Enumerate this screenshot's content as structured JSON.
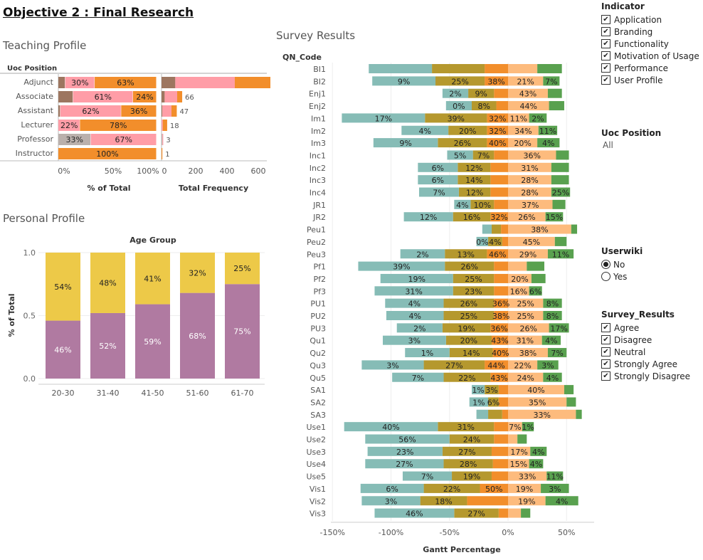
{
  "title": "Objective 2 : Final Research",
  "colors": {
    "agree": "#FDBB7D",
    "disagree": "#B5982E",
    "neutral": "#F28E2B",
    "strongly_agree": "#59A14F",
    "strongly_disagree": "#86BCB6",
    "pink": "#FF9DA7",
    "brown": "#9D7660",
    "grey": "#BAB0AC",
    "age_young": "#EDC948",
    "age_old": "#B07AA1"
  },
  "teaching": {
    "section_title": "Teaching Profile",
    "row_header": "Uoc Position",
    "pct_axis_title": "% of Total",
    "freq_axis_title": "Total Frequency",
    "pct_ticks": [
      "0%",
      "50%",
      "100%"
    ],
    "freq_ticks": [
      "0",
      "200",
      "400",
      "600"
    ]
  },
  "personal": {
    "section_title": "Personal Profile",
    "header": "Age Group",
    "ylabel": "% of Total",
    "yticks": [
      "0.0",
      "0.5",
      "1.0"
    ]
  },
  "survey": {
    "section_title": "Survey Results",
    "row_header": "QN_Code",
    "xlabel": "Gantt Percentage",
    "xticks": [
      "-150%",
      "-100%",
      "-50%",
      "0%",
      "50%"
    ]
  },
  "filters": {
    "indicator": {
      "title": "Indicator",
      "items": [
        "Application",
        "Branding",
        "Functionality",
        "Motivation of Usage",
        "Performance",
        "User Profile"
      ]
    },
    "uoc_position": {
      "title": "Uoc Position",
      "value": "All"
    },
    "userwiki": {
      "title": "Userwiki",
      "options": [
        "No",
        "Yes"
      ],
      "selected": "No"
    },
    "survey_results": {
      "title": "Survey_Results",
      "items": [
        "Agree",
        "Disagree",
        "Neutral",
        "Strongly Agree",
        "Strongly Disagree"
      ]
    }
  },
  "chart_data": [
    {
      "type": "bar",
      "title": "Teaching Profile",
      "row_header": "Uoc Position",
      "xlabel": "% of Total",
      "categories": [
        "Adjunct",
        "Associate",
        "Assistant",
        "Lecturer",
        "Professor",
        "Instructor"
      ],
      "stacked_percent": [
        [
          {
            "v": 7,
            "c": "brown"
          },
          {
            "v": 30,
            "c": "pink",
            "label": "30%"
          },
          {
            "v": 63,
            "c": "neutral",
            "label": "63%"
          }
        ],
        [
          {
            "v": 15,
            "c": "brown"
          },
          {
            "v": 61,
            "c": "pink",
            "label": "61%"
          },
          {
            "v": 24,
            "c": "neutral",
            "label": "24%"
          }
        ],
        [
          {
            "v": 2,
            "c": "brown"
          },
          {
            "v": 62,
            "c": "pink",
            "label": "62%"
          },
          {
            "v": 36,
            "c": "neutral",
            "label": "36%"
          }
        ],
        [
          {
            "v": 22,
            "c": "pink",
            "label": "22%"
          },
          {
            "v": 78,
            "c": "neutral",
            "label": "78%"
          }
        ],
        [
          {
            "v": 33,
            "c": "grey",
            "label": "33%"
          },
          {
            "v": 67,
            "c": "pink",
            "label": "67%"
          }
        ],
        [
          {
            "v": 100,
            "c": "neutral",
            "label": "100%"
          }
        ]
      ],
      "xlim": [
        0,
        100
      ]
    },
    {
      "type": "bar",
      "xlabel": "Total Frequency",
      "categories": [
        "Adjunct",
        "Associate",
        "Assistant",
        "Lecturer",
        "Professor",
        "Instructor"
      ],
      "stacked_values": [
        [
          {
            "v": 44,
            "c": "brown"
          },
          {
            "v": 190,
            "c": "pink"
          },
          {
            "v": 401,
            "c": "neutral"
          }
        ],
        [
          {
            "v": 10,
            "c": "brown"
          },
          {
            "v": 40,
            "c": "pink"
          },
          {
            "v": 16,
            "c": "neutral"
          }
        ],
        [
          {
            "v": 1,
            "c": "brown"
          },
          {
            "v": 29,
            "c": "pink"
          },
          {
            "v": 17,
            "c": "neutral"
          }
        ],
        [
          {
            "v": 4,
            "c": "pink"
          },
          {
            "v": 14,
            "c": "neutral"
          }
        ],
        [
          {
            "v": 1,
            "c": "grey"
          },
          {
            "v": 2,
            "c": "pink"
          }
        ],
        [
          {
            "v": 1,
            "c": "neutral"
          }
        ]
      ],
      "totals": [
        "635",
        "66",
        "47",
        "18",
        "3",
        "1"
      ],
      "xlim": [
        0,
        650
      ]
    },
    {
      "type": "bar",
      "title": "Personal Profile",
      "header": "Age Group",
      "ylabel": "% of Total",
      "categories": [
        "20-30",
        "31-40",
        "41-50",
        "51-60",
        "61-70"
      ],
      "series": [
        {
          "color": "age_old",
          "values": [
            0.46,
            0.52,
            0.59,
            0.68,
            0.75
          ],
          "labels": [
            "46%",
            "52%",
            "59%",
            "68%",
            "75%"
          ]
        },
        {
          "color": "age_young",
          "values": [
            0.54,
            0.48,
            0.41,
            0.32,
            0.25
          ],
          "labels": [
            "54%",
            "48%",
            "41%",
            "32%",
            "25%"
          ]
        }
      ],
      "ylim": [
        0,
        1
      ]
    },
    {
      "type": "bar",
      "title": "Survey Results",
      "row_header": "QN_Code",
      "xlabel": "Gantt Percentage",
      "xlim": [
        -150,
        75
      ],
      "segment_order": [
        "strongly_disagree",
        "disagree",
        "neutral",
        "agree",
        "strongly_agree"
      ],
      "rows": [
        {
          "code": "BI1",
          "sd": 54,
          "d": 45,
          "n": 20,
          "a": 25,
          "sa": 21,
          "labels": {}
        },
        {
          "code": "BI2",
          "sd": 54,
          "d": 42,
          "n": 20,
          "a": 30,
          "sa": 14,
          "labels": {
            "sd": "9%",
            "d": "25%",
            "n": "38%",
            "a": "21%",
            "sa": "7%"
          }
        },
        {
          "code": "Enj1",
          "sd": 22,
          "d": 22,
          "n": 12,
          "a": 34,
          "sa": 12,
          "labels": {
            "sd": "2%",
            "d": "9%",
            "a": "43%"
          }
        },
        {
          "code": "Enj2",
          "sd": 22,
          "d": 21,
          "n": 10,
          "a": 35,
          "sa": 13,
          "labels": {
            "sd": "0%",
            "d": "8%",
            "a": "44%"
          }
        },
        {
          "code": "Im1",
          "sd": 71,
          "d": 53,
          "n": 18,
          "a": 18,
          "sa": 15,
          "labels": {
            "sd": "17%",
            "d": "39%",
            "n": "32%",
            "a": "11%",
            "sa": "2%"
          }
        },
        {
          "code": "Im2",
          "sd": 40,
          "d": 33,
          "n": 18,
          "a": 26,
          "sa": 16,
          "labels": {
            "sd": "4%",
            "d": "20%",
            "n": "32%",
            "a": "34%",
            "sa": "11%"
          }
        },
        {
          "code": "Im3",
          "sd": 55,
          "d": 42,
          "n": 18,
          "a": 25,
          "sa": 19,
          "labels": {
            "sd": "9%",
            "d": "26%",
            "n": "40%",
            "a": "20%",
            "sa": "4%"
          }
        },
        {
          "code": "Inc1",
          "sd": 22,
          "d": 18,
          "n": 12,
          "a": 41,
          "sa": 11,
          "labels": {
            "sd": "5%",
            "d": "7%",
            "a": "36%"
          }
        },
        {
          "code": "Inc2",
          "sd": 34,
          "d": 28,
          "n": 15,
          "a": 37,
          "sa": 15,
          "labels": {
            "sd": "6%",
            "d": "12%",
            "a": "31%"
          }
        },
        {
          "code": "Inc3",
          "sd": 34,
          "d": 28,
          "n": 15,
          "a": 37,
          "sa": 15,
          "labels": {
            "sd": "6%",
            "d": "14%",
            "a": "28%"
          }
        },
        {
          "code": "Inc4",
          "sd": 34,
          "d": 27,
          "n": 15,
          "a": 37,
          "sa": 16,
          "labels": {
            "sd": "7%",
            "d": "12%",
            "a": "28%",
            "sa": "25%"
          }
        },
        {
          "code": "JR1",
          "sd": 14,
          "d": 20,
          "n": 12,
          "a": 38,
          "sa": 11,
          "labels": {
            "sd": "4%",
            "d": "10%",
            "a": "37%"
          }
        },
        {
          "code": "JR2",
          "sd": 42,
          "d": 32,
          "n": 15,
          "a": 32,
          "sa": 15,
          "labels": {
            "sd": "12%",
            "d": "16%",
            "n": "32%",
            "a": "26%",
            "sa": "15%"
          }
        },
        {
          "code": "Peu1",
          "sd": 8,
          "d": 8,
          "n": 6,
          "a": 54,
          "sa": 5,
          "labels": {
            "a": "38%"
          }
        },
        {
          "code": "Peu2",
          "sd": 10,
          "d": 12,
          "n": 5,
          "a": 40,
          "sa": 10,
          "labels": {
            "sd": "0%",
            "d": "4%",
            "a": "45%"
          }
        },
        {
          "code": "Peu3",
          "sd": 38,
          "d": 36,
          "n": 18,
          "a": 34,
          "sa": 22,
          "labels": {
            "sd": "2%",
            "d": "13%",
            "n": "46%",
            "a": "29%",
            "sa": "11%"
          }
        },
        {
          "code": "Pf1",
          "sd": 74,
          "d": 42,
          "n": 12,
          "a": 16,
          "sa": 15,
          "labels": {
            "sd": "39%",
            "d": "26%"
          }
        },
        {
          "code": "Pf2",
          "sd": 62,
          "d": 35,
          "n": 12,
          "a": 20,
          "sa": 12,
          "labels": {
            "sd": "19%",
            "d": "25%",
            "a": "20%"
          }
        },
        {
          "code": "Pf3",
          "sd": 67,
          "d": 35,
          "n": 12,
          "a": 18,
          "sa": 11,
          "labels": {
            "sd": "31%",
            "d": "23%",
            "a": "16%",
            "sa": "6%"
          }
        },
        {
          "code": "PU1",
          "sd": 50,
          "d": 43,
          "n": 12,
          "a": 30,
          "sa": 16,
          "labels": {
            "sd": "4%",
            "d": "26%",
            "n": "36%",
            "a": "25%",
            "sa": "8%"
          }
        },
        {
          "code": "PU2",
          "sd": 49,
          "d": 43,
          "n": 12,
          "a": 30,
          "sa": 16,
          "labels": {
            "sd": "4%",
            "d": "25%",
            "n": "38%",
            "a": "25%",
            "sa": "8%"
          }
        },
        {
          "code": "PU3",
          "sd": 39,
          "d": 41,
          "n": 15,
          "a": 35,
          "sa": 17,
          "labels": {
            "sd": "2%",
            "d": "19%",
            "n": "36%",
            "a": "26%",
            "sa": "17%"
          }
        },
        {
          "code": "Qu1",
          "sd": 54,
          "d": 39,
          "n": 14,
          "a": 29,
          "sa": 16,
          "labels": {
            "sd": "3%",
            "d": "20%",
            "n": "43%",
            "a": "31%",
            "sa": "4%"
          }
        },
        {
          "code": "Qu2",
          "sd": 38,
          "d": 37,
          "n": 13,
          "a": 34,
          "sa": 16,
          "labels": {
            "sd": "1%",
            "d": "14%",
            "n": "40%",
            "a": "38%",
            "sa": "7%"
          }
        },
        {
          "code": "Qu3",
          "sd": 53,
          "d": 52,
          "n": 20,
          "a": 25,
          "sa": 18,
          "labels": {
            "sd": "3%",
            "d": "27%",
            "n": "44%",
            "a": "22%",
            "sa": "3%"
          }
        },
        {
          "code": "Qu5",
          "sd": 44,
          "d": 40,
          "n": 15,
          "a": 30,
          "sa": 16,
          "labels": {
            "sd": "7%",
            "d": "22%",
            "n": "43%",
            "a": "24%",
            "sa": "4%"
          }
        },
        {
          "code": "SA1",
          "sd": 11,
          "d": 12,
          "n": 8,
          "a": 48,
          "sa": 8,
          "labels": {
            "sd": "1%",
            "d": "3%",
            "a": "40%"
          }
        },
        {
          "code": "SA2",
          "sd": 16,
          "d": 9,
          "n": 8,
          "a": 50,
          "sa": 8,
          "labels": {
            "sd": "1%",
            "d": "6%",
            "a": "35%"
          }
        },
        {
          "code": "SA3",
          "sd": 10,
          "d": 12,
          "n": 5,
          "a": 58,
          "sa": 5,
          "labels": {
            "a": "33%"
          }
        },
        {
          "code": "Use1",
          "sd": 80,
          "d": 48,
          "n": 12,
          "a": 12,
          "sa": 10,
          "labels": {
            "sd": "40%",
            "d": "31%",
            "a": "7%",
            "sa": "1%"
          }
        },
        {
          "code": "Use2",
          "sd": 72,
          "d": 38,
          "n": 12,
          "a": 8,
          "sa": 8,
          "labels": {
            "sd": "56%",
            "d": "24%"
          }
        },
        {
          "code": "Use3",
          "sd": 64,
          "d": 42,
          "n": 14,
          "a": 19,
          "sa": 14,
          "labels": {
            "sd": "23%",
            "d": "27%",
            "a": "17%",
            "sa": "4%"
          }
        },
        {
          "code": "Use4",
          "sd": 67,
          "d": 42,
          "n": 13,
          "a": 18,
          "sa": 12,
          "labels": {
            "sd": "27%",
            "d": "28%",
            "a": "15%",
            "sa": "4%"
          }
        },
        {
          "code": "Use5",
          "sd": 42,
          "d": 34,
          "n": 14,
          "a": 33,
          "sa": 14,
          "labels": {
            "sd": "7%",
            "d": "19%",
            "a": "33%",
            "sa": "11%"
          }
        },
        {
          "code": "Vis1",
          "sd": 54,
          "d": 48,
          "n": 24,
          "a": 28,
          "sa": 24,
          "labels": {
            "sd": "6%",
            "d": "22%",
            "n": "50%",
            "a": "19%",
            "sa": "3%"
          }
        },
        {
          "code": "Vis2",
          "sd": 50,
          "d": 40,
          "n": 35,
          "a": 32,
          "sa": 28,
          "labels": {
            "sd": "3%",
            "d": "18%",
            "a": "19%",
            "sa": "4%"
          }
        },
        {
          "code": "Vis3",
          "sd": 68,
          "d": 38,
          "n": 8,
          "a": 11,
          "sa": 8,
          "labels": {
            "sd": "46%",
            "d": "27%"
          }
        }
      ]
    }
  ]
}
